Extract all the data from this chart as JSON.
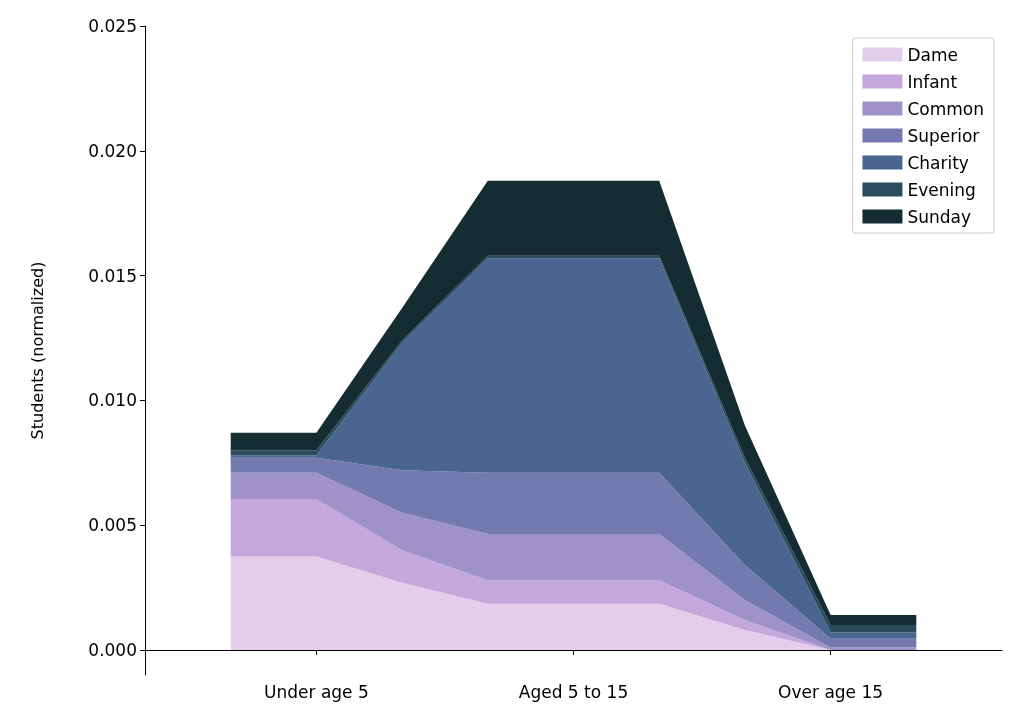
{
  "chart_data": {
    "type": "area",
    "stacked": true,
    "ylabel": "Students (normalized)",
    "categories": [
      null,
      null,
      "Under age 5",
      null,
      null,
      "Aged 5 to 15",
      null,
      null,
      "Over age 15",
      null,
      null
    ],
    "ylim": [
      -0.001,
      0.025
    ],
    "yticks": [
      {
        "value": 0,
        "label": "0.000"
      },
      {
        "value": 0.005,
        "label": "0.005"
      },
      {
        "value": 0.01,
        "label": "0.010"
      },
      {
        "value": 0.015,
        "label": "0.015"
      },
      {
        "value": 0.02,
        "label": "0.020"
      },
      {
        "value": 0.025,
        "label": "0.025"
      }
    ],
    "grid": false,
    "legend": "top right",
    "series": [
      {
        "name": "Dame",
        "color": "#e4cdea",
        "values": [
          null,
          0.00375,
          0.00375,
          0.0027,
          0.00185,
          0.00185,
          0.00185,
          0.0008,
          0,
          0,
          null
        ]
      },
      {
        "name": "Infant",
        "color": "#c4a8dc",
        "values": [
          null,
          0.0023,
          0.0023,
          0.0013,
          0.00095,
          0.00095,
          0.00095,
          0.0004,
          0,
          0,
          null
        ]
      },
      {
        "name": "Common",
        "color": "#9e92c8",
        "values": [
          null,
          0.00105,
          0.00105,
          0.0015,
          0.00185,
          0.00185,
          0.00185,
          0.0008,
          0.0001,
          0.0001,
          null
        ]
      },
      {
        "name": "Superior",
        "color": "#7479b0",
        "values": [
          null,
          0.0006,
          0.0006,
          0.0017,
          0.00245,
          0.00245,
          0.00245,
          0.0014,
          0.00035,
          0.00035,
          null
        ]
      },
      {
        "name": "Charity",
        "color": "#4a6690",
        "values": [
          null,
          0.0001,
          0.0001,
          0.0051,
          0.0086,
          0.0086,
          0.0086,
          0.0041,
          0.00025,
          0.00025,
          null
        ]
      },
      {
        "name": "Evening",
        "color": "#2b4b5f",
        "values": [
          null,
          0.0002,
          0.0002,
          0.0001,
          0.0001,
          0.0001,
          0.0001,
          0.0002,
          0.0003,
          0.0003,
          null
        ]
      },
      {
        "name": "Sunday",
        "color": "#142c32",
        "values": [
          null,
          0.0007,
          0.0007,
          0.0013,
          0.003,
          0.003,
          0.003,
          0.0013,
          0.0004,
          0.0004,
          null
        ]
      }
    ]
  }
}
